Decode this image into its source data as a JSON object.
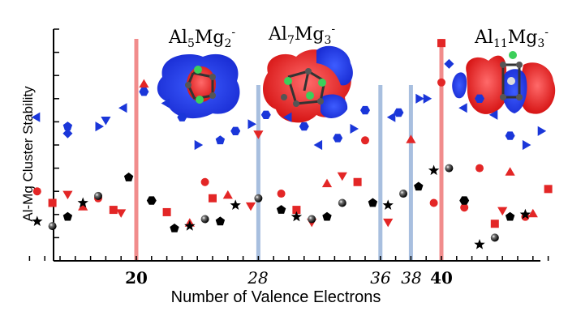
{
  "chart_data": {
    "type": "scatter",
    "xlabel": "Number of Valence Electrons",
    "ylabel": "Al-Mg Cluster Stability",
    "xlim": [
      13,
      48
    ],
    "ylim": [
      0,
      10
    ],
    "x_ticks_bold": [
      "20",
      "40"
    ],
    "x_ticks_italic": [
      "28",
      "36",
      "38"
    ],
    "highlight_lines": [
      {
        "x": 20,
        "color": "#f08080"
      },
      {
        "x": 28,
        "color": "#9fb8dc"
      },
      {
        "x": 36,
        "color": "#9fb8dc"
      },
      {
        "x": 38,
        "color": "#9fb8dc"
      },
      {
        "x": 40,
        "color": "#f08080"
      }
    ],
    "cluster_labels": [
      {
        "base": "Al",
        "n1": "5",
        "mid": "Mg",
        "n2": "2",
        "charge": "-"
      },
      {
        "base": "Al",
        "n1": "7",
        "mid": "Mg",
        "n2": "3",
        "charge": "-"
      },
      {
        "base": "Al",
        "n1": "11",
        "mid": "Mg",
        "n2": "3",
        "charge": "-"
      }
    ],
    "series": [
      {
        "color": "#1a36d9",
        "points": [
          {
            "x": 13.5,
            "y": 6.2,
            "m": "tri-left"
          },
          {
            "x": 15.5,
            "y": 5.5,
            "m": "diamond"
          },
          {
            "x": 15.5,
            "y": 5.8,
            "m": "pentagon"
          },
          {
            "x": 17.5,
            "y": 5.8,
            "m": "tri-right"
          },
          {
            "x": 18.0,
            "y": 6.1,
            "m": "tri-down"
          },
          {
            "x": 19.2,
            "y": 6.6,
            "m": "tri-left"
          },
          {
            "x": 20.5,
            "y": 7.3,
            "m": "hexagon"
          },
          {
            "x": 22.0,
            "y": 6.8,
            "m": "tri-left"
          },
          {
            "x": 23.0,
            "y": 6.2,
            "m": "hexagon"
          },
          {
            "x": 24.0,
            "y": 5.0,
            "m": "tri-right"
          },
          {
            "x": 25.5,
            "y": 5.2,
            "m": "pentagon"
          },
          {
            "x": 26.5,
            "y": 5.6,
            "m": "hexagon"
          },
          {
            "x": 27.5,
            "y": 5.9,
            "m": "tri-right"
          },
          {
            "x": 28.5,
            "y": 6.3,
            "m": "hexagon"
          },
          {
            "x": 30.0,
            "y": 6.2,
            "m": "tri-left"
          },
          {
            "x": 31.0,
            "y": 5.8,
            "m": "hexagon"
          },
          {
            "x": 32.0,
            "y": 5.0,
            "m": "tri-left"
          },
          {
            "x": 33.2,
            "y": 5.3,
            "m": "hexagon"
          },
          {
            "x": 34.2,
            "y": 5.7,
            "m": "tri-right"
          },
          {
            "x": 35.0,
            "y": 6.5,
            "m": "hexagon"
          },
          {
            "x": 36.8,
            "y": 6.2,
            "m": "tri-left"
          },
          {
            "x": 37.2,
            "y": 6.4,
            "m": "hexagon"
          },
          {
            "x": 38.5,
            "y": 7.0,
            "m": "tri-right"
          },
          {
            "x": 39.0,
            "y": 7.0,
            "m": "tri-right"
          },
          {
            "x": 40.5,
            "y": 8.5,
            "m": "diamond"
          },
          {
            "x": 41.5,
            "y": 6.6,
            "m": "tri-left"
          },
          {
            "x": 42.5,
            "y": 7.0,
            "m": "hexagon"
          },
          {
            "x": 43.5,
            "y": 6.3,
            "m": "tri-left"
          },
          {
            "x": 44.5,
            "y": 5.4,
            "m": "hexagon"
          },
          {
            "x": 45.5,
            "y": 5.0,
            "m": "tri-right"
          },
          {
            "x": 46.5,
            "y": 5.6,
            "m": "tri-right"
          }
        ]
      },
      {
        "color": "#e32626",
        "points": [
          {
            "x": 13.5,
            "y": 3.0,
            "m": "circle"
          },
          {
            "x": 14.5,
            "y": 2.5,
            "m": "square"
          },
          {
            "x": 15.5,
            "y": 2.9,
            "m": "tri-down"
          },
          {
            "x": 16.5,
            "y": 2.3,
            "m": "tri-up"
          },
          {
            "x": 17.5,
            "y": 2.7,
            "m": "circle"
          },
          {
            "x": 18.5,
            "y": 2.2,
            "m": "square"
          },
          {
            "x": 19.0,
            "y": 2.1,
            "m": "tri-down"
          },
          {
            "x": 20.5,
            "y": 7.6,
            "m": "tri-up"
          },
          {
            "x": 22.0,
            "y": 2.1,
            "m": "square"
          },
          {
            "x": 23.5,
            "y": 1.6,
            "m": "tri-up"
          },
          {
            "x": 24.5,
            "y": 3.4,
            "m": "circle"
          },
          {
            "x": 25.0,
            "y": 2.7,
            "m": "square"
          },
          {
            "x": 26.0,
            "y": 2.8,
            "m": "tri-up"
          },
          {
            "x": 27.5,
            "y": 2.4,
            "m": "tri-down"
          },
          {
            "x": 28.0,
            "y": 5.5,
            "m": "tri-down"
          },
          {
            "x": 29.5,
            "y": 2.9,
            "m": "circle"
          },
          {
            "x": 30.5,
            "y": 2.2,
            "m": "square"
          },
          {
            "x": 31.5,
            "y": 1.7,
            "m": "tri-down"
          },
          {
            "x": 32.5,
            "y": 3.3,
            "m": "tri-up"
          },
          {
            "x": 33.5,
            "y": 3.7,
            "m": "tri-down"
          },
          {
            "x": 34.5,
            "y": 3.4,
            "m": "square"
          },
          {
            "x": 35.0,
            "y": 5.2,
            "m": "circle"
          },
          {
            "x": 36.5,
            "y": 1.7,
            "m": "tri-down"
          },
          {
            "x": 38.0,
            "y": 5.2,
            "m": "tri-up"
          },
          {
            "x": 39.5,
            "y": 2.5,
            "m": "circle"
          },
          {
            "x": 40.0,
            "y": 9.4,
            "m": "square"
          },
          {
            "x": 40.0,
            "y": 7.7,
            "m": "circle"
          },
          {
            "x": 41.5,
            "y": 2.3,
            "m": "circle"
          },
          {
            "x": 42.5,
            "y": 4.0,
            "m": "circle"
          },
          {
            "x": 43.5,
            "y": 1.6,
            "m": "square"
          },
          {
            "x": 44.0,
            "y": 2.2,
            "m": "tri-down"
          },
          {
            "x": 44.5,
            "y": 3.8,
            "m": "tri-up"
          },
          {
            "x": 45.5,
            "y": 1.9,
            "m": "circle"
          },
          {
            "x": 46.0,
            "y": 2.0,
            "m": "tri-up"
          },
          {
            "x": 47.0,
            "y": 3.1,
            "m": "square"
          }
        ]
      },
      {
        "color": "#000000",
        "points": [
          {
            "x": 13.5,
            "y": 1.7,
            "m": "star"
          },
          {
            "x": 14.5,
            "y": 1.5,
            "m": "sphere"
          },
          {
            "x": 15.5,
            "y": 1.9,
            "m": "pentagon"
          },
          {
            "x": 16.5,
            "y": 2.5,
            "m": "star"
          },
          {
            "x": 17.5,
            "y": 2.8,
            "m": "sphere"
          },
          {
            "x": 19.5,
            "y": 3.6,
            "m": "pentagon"
          },
          {
            "x": 21.0,
            "y": 2.6,
            "m": "hexagon"
          },
          {
            "x": 22.5,
            "y": 1.4,
            "m": "pentagon"
          },
          {
            "x": 23.5,
            "y": 1.5,
            "m": "star"
          },
          {
            "x": 24.5,
            "y": 1.8,
            "m": "sphere"
          },
          {
            "x": 25.5,
            "y": 1.7,
            "m": "pentagon"
          },
          {
            "x": 26.5,
            "y": 2.4,
            "m": "star"
          },
          {
            "x": 28.0,
            "y": 2.7,
            "m": "sphere"
          },
          {
            "x": 29.5,
            "y": 2.2,
            "m": "pentagon"
          },
          {
            "x": 30.5,
            "y": 1.9,
            "m": "star"
          },
          {
            "x": 31.5,
            "y": 1.8,
            "m": "sphere"
          },
          {
            "x": 32.5,
            "y": 1.9,
            "m": "pentagon"
          },
          {
            "x": 33.5,
            "y": 2.5,
            "m": "sphere"
          },
          {
            "x": 35.5,
            "y": 2.5,
            "m": "pentagon"
          },
          {
            "x": 36.5,
            "y": 2.4,
            "m": "star"
          },
          {
            "x": 37.5,
            "y": 2.9,
            "m": "sphere"
          },
          {
            "x": 38.5,
            "y": 3.2,
            "m": "pentagon"
          },
          {
            "x": 39.5,
            "y": 3.9,
            "m": "star"
          },
          {
            "x": 40.5,
            "y": 4.0,
            "m": "sphere"
          },
          {
            "x": 41.5,
            "y": 2.6,
            "m": "hexagon"
          },
          {
            "x": 42.5,
            "y": 0.7,
            "m": "star"
          },
          {
            "x": 43.5,
            "y": 1.0,
            "m": "sphere"
          },
          {
            "x": 44.5,
            "y": 1.9,
            "m": "pentagon"
          },
          {
            "x": 45.5,
            "y": 2.0,
            "m": "star"
          }
        ]
      }
    ]
  }
}
